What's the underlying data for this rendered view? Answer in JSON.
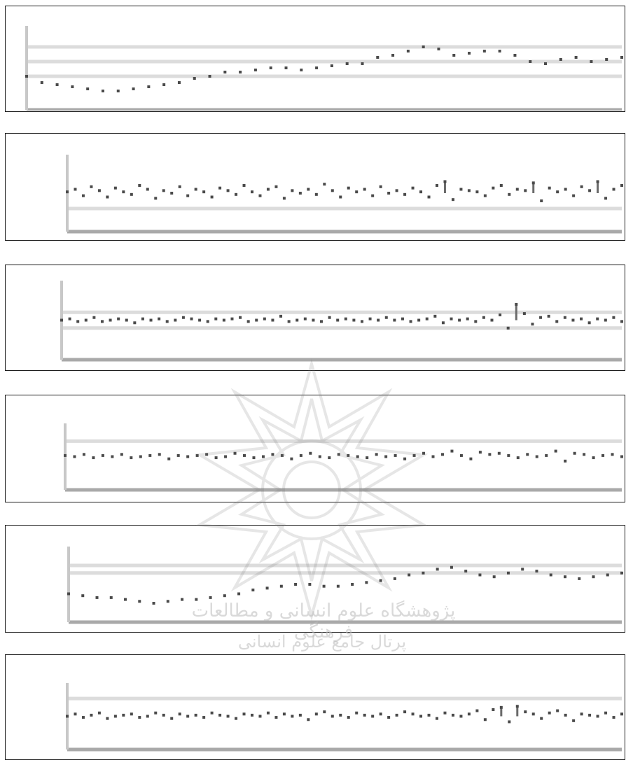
{
  "chart_data": [
    {
      "type": "scatter",
      "title": "",
      "xlabel": "",
      "ylabel": "",
      "grid": true,
      "y_min": 0,
      "y_max": 4,
      "gridlines": [
        3,
        2.3,
        1.6
      ],
      "x": [
        1,
        2,
        3,
        4,
        5,
        6,
        7,
        8,
        9,
        10,
        11,
        12,
        13,
        14,
        15,
        16,
        17,
        18,
        19,
        20,
        21,
        22,
        23,
        24,
        25,
        26,
        27,
        28,
        29,
        30,
        31,
        32,
        33,
        34,
        35,
        36,
        37,
        38,
        39,
        40
      ],
      "series": [
        {
          "values": [
            1.6,
            1.3,
            1.2,
            1.1,
            1.0,
            0.9,
            0.9,
            1.0,
            1.1,
            1.2,
            1.3,
            1.5,
            1.6,
            1.8,
            1.8,
            1.9,
            2.0,
            2.0,
            1.9,
            2.0,
            2.1,
            2.2,
            2.2,
            2.5,
            2.6,
            2.8,
            3.0,
            2.9,
            2.6,
            2.7,
            2.8,
            2.8,
            2.6,
            2.3,
            2.2,
            2.4,
            2.5,
            2.3,
            2.4,
            2.5
          ]
        }
      ]
    },
    {
      "type": "scatter",
      "title": "",
      "xlabel": "",
      "ylabel": "",
      "grid": true,
      "y_min": -3,
      "y_max": 3,
      "gridlines": [
        -1.2
      ],
      "x": [
        1,
        2,
        3,
        4,
        5,
        6,
        7,
        8,
        9,
        10,
        11,
        12,
        13,
        14,
        15,
        16,
        17,
        18,
        19,
        20,
        21,
        22,
        23,
        24,
        25,
        26,
        27,
        28,
        29,
        30,
        31,
        32,
        33,
        34,
        35,
        36,
        37,
        38,
        39,
        40,
        41,
        42,
        43,
        44,
        45,
        46,
        47,
        48,
        49,
        50,
        51,
        52,
        53,
        54,
        55,
        56,
        57,
        58,
        59,
        60,
        61,
        62,
        63,
        64,
        65,
        66,
        67,
        68,
        69,
        70
      ],
      "series": [
        {
          "values": [
            0.1,
            0.3,
            -0.2,
            0.5,
            0.2,
            -0.3,
            0.4,
            0.1,
            -0.1,
            0.6,
            0.3,
            -0.4,
            0.2,
            0.0,
            0.5,
            -0.2,
            0.3,
            0.1,
            -0.3,
            0.4,
            0.2,
            -0.1,
            0.6,
            0.1,
            -0.2,
            0.3,
            0.5,
            -0.4,
            0.2,
            0.0,
            0.3,
            -0.1,
            0.7,
            0.2,
            -0.3,
            0.4,
            0.1,
            0.3,
            -0.2,
            0.5,
            0.0,
            0.2,
            -0.1,
            0.4,
            0.1,
            -0.3,
            0.6,
            0.9,
            -0.5,
            0.3,
            0.2,
            0.1,
            -0.2,
            0.4,
            0.6,
            -0.1,
            0.3,
            0.2,
            0.8,
            -0.6,
            0.4,
            0.1,
            0.3,
            -0.2,
            0.5,
            0.2,
            0.9,
            -0.4,
            0.3,
            0.6
          ]
        }
      ]
    },
    {
      "type": "scatter",
      "title": "",
      "xlabel": "",
      "ylabel": "",
      "grid": true,
      "y_min": -3,
      "y_max": 3,
      "gridlines": [
        0.6,
        -0.6
      ],
      "x": [
        1,
        2,
        3,
        4,
        5,
        6,
        7,
        8,
        9,
        10,
        11,
        12,
        13,
        14,
        15,
        16,
        17,
        18,
        19,
        20,
        21,
        22,
        23,
        24,
        25,
        26,
        27,
        28,
        29,
        30,
        31,
        32,
        33,
        34,
        35,
        36,
        37,
        38,
        39,
        40,
        41,
        42,
        43,
        44,
        45,
        46,
        47,
        48,
        49,
        50,
        51,
        52,
        53,
        54,
        55,
        56,
        57,
        58,
        59,
        60,
        61,
        62,
        63,
        64,
        65,
        66,
        67,
        68,
        69,
        70
      ],
      "series": [
        {
          "values": [
            0.0,
            0.1,
            -0.1,
            0.0,
            0.2,
            -0.1,
            0.0,
            0.1,
            0.0,
            -0.2,
            0.1,
            0.0,
            0.1,
            -0.1,
            0.0,
            0.2,
            0.1,
            0.0,
            -0.1,
            0.1,
            0.0,
            0.1,
            0.2,
            -0.1,
            0.0,
            0.1,
            0.0,
            0.3,
            -0.1,
            0.0,
            0.1,
            0.0,
            -0.1,
            0.2,
            0.0,
            0.1,
            0.0,
            -0.1,
            0.1,
            0.0,
            0.2,
            0.0,
            0.1,
            -0.1,
            0.0,
            0.1,
            0.3,
            -0.2,
            0.1,
            0.0,
            0.1,
            -0.1,
            0.2,
            0.0,
            0.4,
            -0.6,
            1.2,
            0.5,
            -0.3,
            0.2,
            0.3,
            -0.1,
            0.2,
            0.0,
            0.1,
            -0.2,
            0.1,
            0.0,
            0.2,
            -0.1
          ]
        }
      ]
    },
    {
      "type": "scatter",
      "title": "",
      "xlabel": "",
      "ylabel": "",
      "grid": true,
      "y_min": -3,
      "y_max": 3,
      "gridlines": [
        1.4
      ],
      "x": [
        1,
        2,
        3,
        4,
        5,
        6,
        7,
        8,
        9,
        10,
        11,
        12,
        13,
        14,
        15,
        16,
        17,
        18,
        19,
        20,
        21,
        22,
        23,
        24,
        25,
        26,
        27,
        28,
        29,
        30,
        31,
        32,
        33,
        34,
        35,
        36,
        37,
        38,
        39,
        40,
        41,
        42,
        43,
        44,
        45,
        46,
        47,
        48,
        49,
        50,
        51,
        52,
        53,
        54,
        55,
        56,
        57,
        58,
        59,
        60
      ],
      "series": [
        {
          "values": [
            0.1,
            0.0,
            0.2,
            -0.1,
            0.1,
            0.0,
            0.2,
            -0.1,
            0.0,
            0.1,
            0.2,
            -0.2,
            0.1,
            0.0,
            0.1,
            0.2,
            -0.1,
            0.0,
            0.3,
            0.1,
            -0.1,
            0.0,
            0.2,
            0.1,
            -0.2,
            0.1,
            0.3,
            0.0,
            -0.1,
            0.2,
            0.1,
            0.0,
            -0.1,
            0.2,
            0.0,
            0.1,
            -0.2,
            0.1,
            0.3,
            0.0,
            0.2,
            0.5,
            0.1,
            -0.2,
            0.4,
            0.2,
            0.3,
            0.1,
            -0.1,
            0.2,
            0.0,
            0.1,
            0.5,
            -0.4,
            0.3,
            0.2,
            -0.1,
            0.1,
            0.2,
            0.0
          ]
        }
      ]
    },
    {
      "type": "scatter",
      "title": "",
      "xlabel": "",
      "ylabel": "",
      "grid": true,
      "y_min": 0,
      "y_max": 4,
      "gridlines": [
        3.0,
        2.6
      ],
      "x": [
        1,
        2,
        3,
        4,
        5,
        6,
        7,
        8,
        9,
        10,
        11,
        12,
        13,
        14,
        15,
        16,
        17,
        18,
        19,
        20,
        21,
        22,
        23,
        24,
        25,
        26,
        27,
        28,
        29,
        30,
        31,
        32,
        33,
        34,
        35,
        36,
        37,
        38,
        39,
        40
      ],
      "series": [
        {
          "values": [
            1.5,
            1.4,
            1.3,
            1.3,
            1.2,
            1.1,
            1.0,
            1.1,
            1.2,
            1.2,
            1.3,
            1.4,
            1.5,
            1.7,
            1.8,
            1.9,
            2.0,
            2.0,
            1.9,
            1.9,
            2.0,
            2.1,
            2.2,
            2.3,
            2.5,
            2.6,
            2.8,
            2.9,
            2.7,
            2.5,
            2.4,
            2.6,
            2.8,
            2.7,
            2.5,
            2.4,
            2.3,
            2.4,
            2.5,
            2.6
          ]
        }
      ]
    },
    {
      "type": "scatter",
      "title": "",
      "xlabel": "",
      "ylabel": "",
      "grid": true,
      "y_min": -3,
      "y_max": 3,
      "gridlines": [
        1.6
      ],
      "x": [
        1,
        2,
        3,
        4,
        5,
        6,
        7,
        8,
        9,
        10,
        11,
        12,
        13,
        14,
        15,
        16,
        17,
        18,
        19,
        20,
        21,
        22,
        23,
        24,
        25,
        26,
        27,
        28,
        29,
        30,
        31,
        32,
        33,
        34,
        35,
        36,
        37,
        38,
        39,
        40,
        41,
        42,
        43,
        44,
        45,
        46,
        47,
        48,
        49,
        50,
        51,
        52,
        53,
        54,
        55,
        56,
        57,
        58,
        59,
        60,
        61,
        62,
        63,
        64,
        65,
        66,
        67,
        68,
        69,
        70
      ],
      "series": [
        {
          "values": [
            0.0,
            0.2,
            -0.1,
            0.1,
            0.3,
            -0.2,
            0.0,
            0.1,
            0.2,
            -0.1,
            0.0,
            0.3,
            0.1,
            -0.2,
            0.2,
            0.0,
            0.1,
            -0.1,
            0.3,
            0.1,
            0.0,
            -0.2,
            0.2,
            0.1,
            0.0,
            0.3,
            -0.1,
            0.2,
            0.0,
            0.1,
            -0.3,
            0.2,
            0.4,
            0.0,
            0.1,
            -0.1,
            0.3,
            0.1,
            0.0,
            0.2,
            -0.1,
            0.1,
            0.4,
            0.2,
            0.0,
            0.1,
            -0.2,
            0.3,
            0.1,
            0.0,
            0.2,
            0.5,
            -0.3,
            0.6,
            0.8,
            -0.5,
            0.9,
            0.4,
            0.2,
            -0.2,
            0.3,
            0.5,
            0.1,
            -0.4,
            0.2,
            0.1,
            0.0,
            0.3,
            -0.1,
            0.2
          ]
        }
      ]
    }
  ]
}
